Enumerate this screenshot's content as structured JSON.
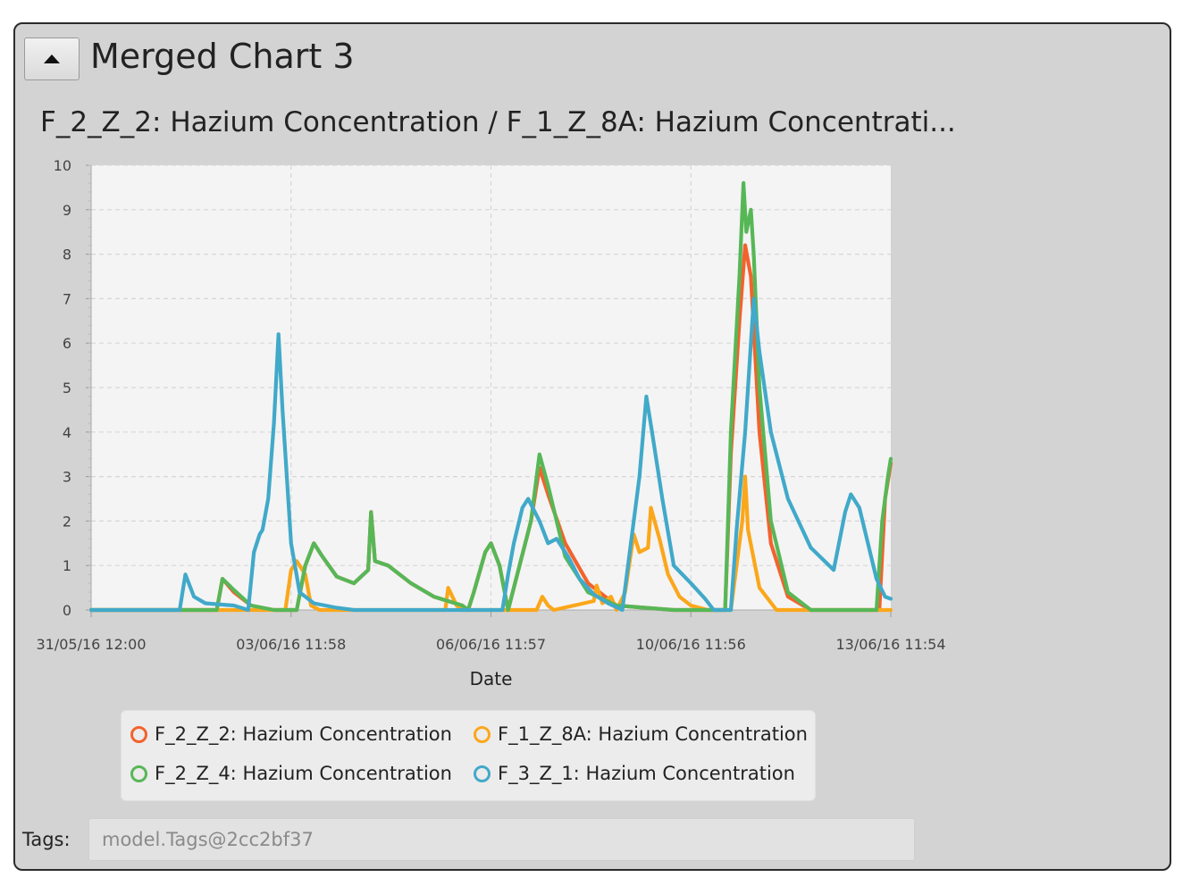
{
  "panel": {
    "title": "Merged Chart 3",
    "collapse_icon": "triangle-up-icon"
  },
  "chart_data": {
    "type": "line",
    "title": "F_2_Z_2: Hazium Concentration / F_1_Z_8A: Hazium Concentrati...",
    "xlabel": "Date",
    "ylabel": "",
    "ylim": [
      0,
      10
    ],
    "yticks": [
      "0",
      "1",
      "2",
      "3",
      "4",
      "5",
      "6",
      "7",
      "8",
      "9",
      "10"
    ],
    "xlim": [
      0,
      14
    ],
    "xticks": [
      {
        "x": 0,
        "label": "31/05/16 12:00"
      },
      {
        "x": 3.5,
        "label": "03/06/16 11:58"
      },
      {
        "x": 7.0,
        "label": "06/06/16 11:57"
      },
      {
        "x": 10.5,
        "label": "10/06/16 11:56"
      },
      {
        "x": 14.0,
        "label": "13/06/16 11:54"
      }
    ],
    "grid": true,
    "legend_position": "bottom",
    "series": [
      {
        "name": "F_2_Z_2: Hazium Concentration",
        "color": "#f3622d",
        "points": [
          [
            0,
            0
          ],
          [
            2.2,
            0
          ],
          [
            2.3,
            0.7
          ],
          [
            2.5,
            0.4
          ],
          [
            2.8,
            0.1
          ],
          [
            3.2,
            0
          ],
          [
            3.6,
            0
          ],
          [
            3.75,
            1.0
          ],
          [
            3.9,
            1.5
          ],
          [
            4.05,
            1.2
          ],
          [
            4.3,
            0.75
          ],
          [
            4.6,
            0.6
          ],
          [
            4.85,
            0.9
          ],
          [
            4.9,
            2.2
          ],
          [
            4.97,
            1.1
          ],
          [
            5.2,
            1.0
          ],
          [
            5.6,
            0.6
          ],
          [
            6.0,
            0.3
          ],
          [
            6.5,
            0.1
          ],
          [
            6.6,
            0
          ],
          [
            6.7,
            0.4
          ],
          [
            6.9,
            1.3
          ],
          [
            7.0,
            1.5
          ],
          [
            7.15,
            1.0
          ],
          [
            7.3,
            0
          ],
          [
            7.5,
            1.0
          ],
          [
            7.7,
            2.0
          ],
          [
            7.85,
            3.2
          ],
          [
            8.0,
            2.6
          ],
          [
            8.3,
            1.5
          ],
          [
            8.7,
            0.6
          ],
          [
            9.2,
            0.1
          ],
          [
            10.2,
            0
          ],
          [
            11.1,
            0
          ],
          [
            11.2,
            3.5
          ],
          [
            11.35,
            6.5
          ],
          [
            11.45,
            8.2
          ],
          [
            11.55,
            7.5
          ],
          [
            11.7,
            4.0
          ],
          [
            11.9,
            1.5
          ],
          [
            12.2,
            0.3
          ],
          [
            12.6,
            0
          ],
          [
            13.8,
            0
          ],
          [
            13.9,
            2.5
          ],
          [
            14.0,
            3.3
          ]
        ]
      },
      {
        "name": "F_1_Z_8A: Hazium Concentration",
        "color": "#fba71b",
        "points": [
          [
            0,
            0
          ],
          [
            3.4,
            0
          ],
          [
            3.5,
            0.9
          ],
          [
            3.6,
            1.1
          ],
          [
            3.75,
            0.8
          ],
          [
            3.85,
            0.1
          ],
          [
            4.0,
            0
          ],
          [
            6.2,
            0
          ],
          [
            6.25,
            0.5
          ],
          [
            6.4,
            0.1
          ],
          [
            6.5,
            0
          ],
          [
            7.8,
            0
          ],
          [
            7.9,
            0.3
          ],
          [
            8.0,
            0.1
          ],
          [
            8.1,
            0
          ],
          [
            8.8,
            0.2
          ],
          [
            8.85,
            0.55
          ],
          [
            8.95,
            0.15
          ],
          [
            9.1,
            0.3
          ],
          [
            9.2,
            0
          ],
          [
            9.35,
            0.4
          ],
          [
            9.5,
            1.7
          ],
          [
            9.6,
            1.3
          ],
          [
            9.75,
            1.4
          ],
          [
            9.8,
            2.3
          ],
          [
            9.95,
            1.6
          ],
          [
            10.1,
            0.8
          ],
          [
            10.3,
            0.3
          ],
          [
            10.5,
            0.1
          ],
          [
            10.8,
            0
          ],
          [
            11.2,
            0
          ],
          [
            11.3,
            1.0
          ],
          [
            11.4,
            2.0
          ],
          [
            11.45,
            3.0
          ],
          [
            11.5,
            1.8
          ],
          [
            11.7,
            0.5
          ],
          [
            12.0,
            0
          ],
          [
            14.0,
            0
          ]
        ]
      },
      {
        "name": "F_2_Z_4: Hazium Concentration",
        "color": "#57b757",
        "points": [
          [
            0,
            0
          ],
          [
            2.2,
            0
          ],
          [
            2.3,
            0.7
          ],
          [
            2.5,
            0.45
          ],
          [
            2.8,
            0.1
          ],
          [
            3.2,
            0
          ],
          [
            3.6,
            0
          ],
          [
            3.75,
            1.0
          ],
          [
            3.9,
            1.5
          ],
          [
            4.05,
            1.2
          ],
          [
            4.3,
            0.75
          ],
          [
            4.6,
            0.6
          ],
          [
            4.85,
            0.9
          ],
          [
            4.9,
            2.2
          ],
          [
            4.97,
            1.1
          ],
          [
            5.2,
            1.0
          ],
          [
            5.6,
            0.6
          ],
          [
            6.0,
            0.3
          ],
          [
            6.5,
            0.1
          ],
          [
            6.6,
            0
          ],
          [
            6.7,
            0.4
          ],
          [
            6.9,
            1.3
          ],
          [
            7.0,
            1.5
          ],
          [
            7.15,
            1.0
          ],
          [
            7.3,
            0
          ],
          [
            7.5,
            1.0
          ],
          [
            7.7,
            2.0
          ],
          [
            7.85,
            3.5
          ],
          [
            8.0,
            2.8
          ],
          [
            8.3,
            1.2
          ],
          [
            8.7,
            0.4
          ],
          [
            9.2,
            0.1
          ],
          [
            10.2,
            0
          ],
          [
            11.1,
            0
          ],
          [
            11.2,
            4.0
          ],
          [
            11.35,
            7.5
          ],
          [
            11.42,
            9.6
          ],
          [
            11.47,
            8.5
          ],
          [
            11.55,
            9.0
          ],
          [
            11.6,
            8.0
          ],
          [
            11.7,
            5.0
          ],
          [
            11.9,
            2.0
          ],
          [
            12.2,
            0.4
          ],
          [
            12.6,
            0
          ],
          [
            13.75,
            0
          ],
          [
            13.85,
            2.0
          ],
          [
            13.95,
            3.0
          ],
          [
            14.0,
            3.4
          ]
        ]
      },
      {
        "name": "F_3_Z_1: Hazium Concentration",
        "color": "#41a9c9",
        "points": [
          [
            0,
            0
          ],
          [
            1.55,
            0
          ],
          [
            1.65,
            0.8
          ],
          [
            1.8,
            0.3
          ],
          [
            2.0,
            0.15
          ],
          [
            2.5,
            0.1
          ],
          [
            2.75,
            0
          ],
          [
            2.85,
            1.3
          ],
          [
            2.95,
            1.7
          ],
          [
            3.0,
            1.8
          ],
          [
            3.1,
            2.5
          ],
          [
            3.2,
            4.2
          ],
          [
            3.28,
            6.2
          ],
          [
            3.35,
            4.5
          ],
          [
            3.5,
            1.5
          ],
          [
            3.65,
            0.4
          ],
          [
            3.9,
            0.15
          ],
          [
            4.3,
            0.05
          ],
          [
            4.6,
            0
          ],
          [
            7.2,
            0
          ],
          [
            7.3,
            0.8
          ],
          [
            7.4,
            1.5
          ],
          [
            7.55,
            2.3
          ],
          [
            7.65,
            2.5
          ],
          [
            7.85,
            2.0
          ],
          [
            8.0,
            1.5
          ],
          [
            8.15,
            1.6
          ],
          [
            8.35,
            1.2
          ],
          [
            8.55,
            0.7
          ],
          [
            8.8,
            0.35
          ],
          [
            9.05,
            0.15
          ],
          [
            9.3,
            0
          ],
          [
            9.45,
            1.5
          ],
          [
            9.6,
            3.0
          ],
          [
            9.72,
            4.8
          ],
          [
            9.82,
            4.0
          ],
          [
            10.0,
            2.5
          ],
          [
            10.2,
            1.0
          ],
          [
            10.5,
            0.6
          ],
          [
            10.75,
            0.25
          ],
          [
            10.9,
            0
          ],
          [
            11.2,
            0
          ],
          [
            11.3,
            1.8
          ],
          [
            11.45,
            4.0
          ],
          [
            11.6,
            7.0
          ],
          [
            11.7,
            5.8
          ],
          [
            11.9,
            4.0
          ],
          [
            12.2,
            2.5
          ],
          [
            12.6,
            1.4
          ],
          [
            13.0,
            0.9
          ],
          [
            13.2,
            2.2
          ],
          [
            13.3,
            2.6
          ],
          [
            13.45,
            2.3
          ],
          [
            13.6,
            1.5
          ],
          [
            13.75,
            0.7
          ],
          [
            13.9,
            0.3
          ],
          [
            14.0,
            0.25
          ]
        ]
      }
    ]
  },
  "tags": {
    "label": "Tags:",
    "value": "model.Tags@2cc2bf37"
  }
}
